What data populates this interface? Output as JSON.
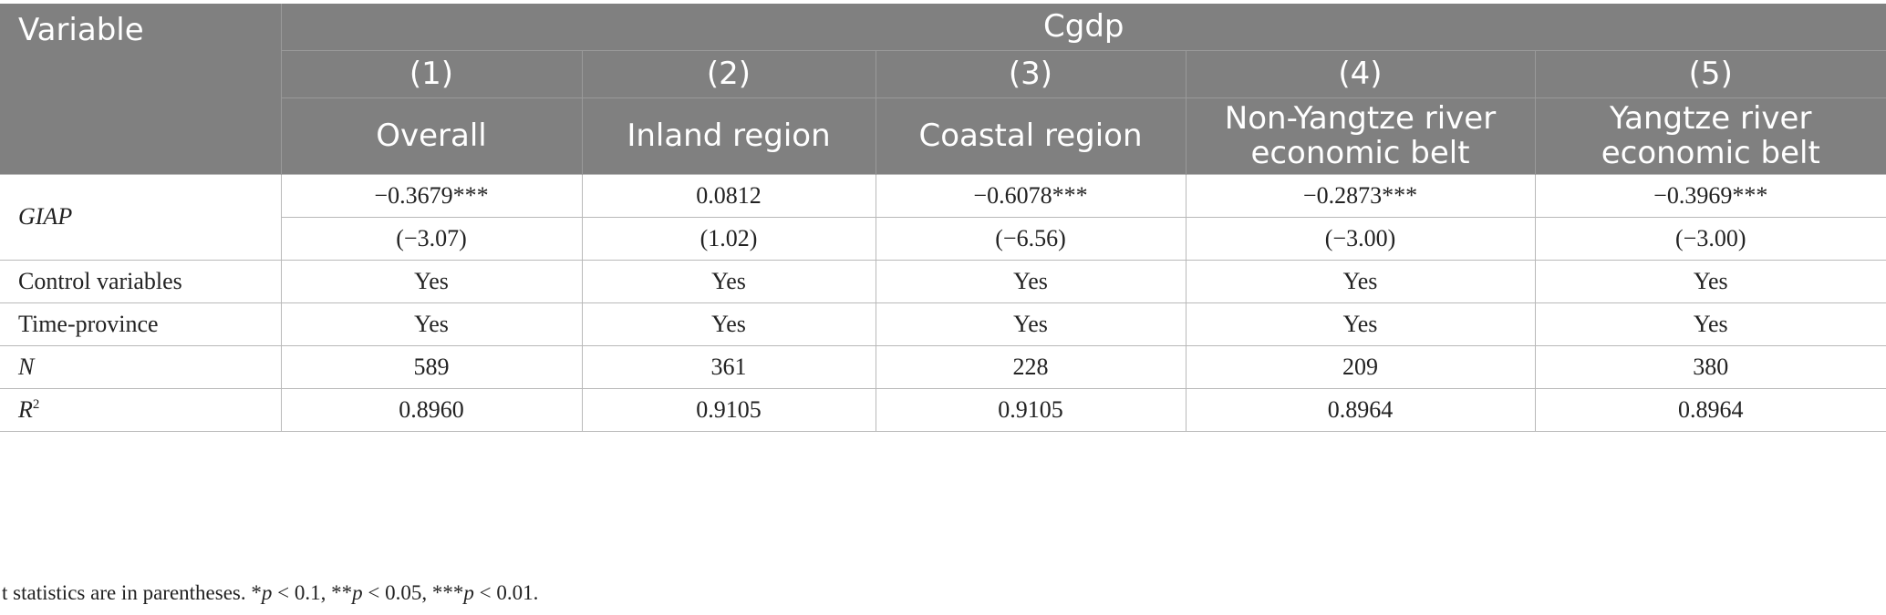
{
  "header": {
    "variable_label": "Variable",
    "group_label": "Cgdp",
    "models": [
      {
        "num": "(1)",
        "label": "Overall"
      },
      {
        "num": "(2)",
        "label": "Inland region"
      },
      {
        "num": "(3)",
        "label": "Coastal region"
      },
      {
        "num": "(4)",
        "label": "Non-Yangtze river economic belt"
      },
      {
        "num": "(5)",
        "label": "Yangtze river economic belt"
      }
    ]
  },
  "rows": [
    {
      "label": "GIAP",
      "coef": [
        "−0.3679***",
        "0.0812",
        "−0.6078***",
        "−0.2873***",
        "−0.3969***"
      ],
      "tstat": [
        "(−3.07)",
        "(1.02)",
        "(−6.56)",
        "(−3.00)",
        "(−3.00)"
      ]
    },
    {
      "label": "Control variables",
      "values": [
        "Yes",
        "Yes",
        "Yes",
        "Yes",
        "Yes"
      ]
    },
    {
      "label": "Time-province",
      "values": [
        "Yes",
        "Yes",
        "Yes",
        "Yes",
        "Yes"
      ]
    },
    {
      "label": "N",
      "values": [
        "589",
        "361",
        "228",
        "209",
        "380"
      ]
    },
    {
      "label": "R",
      "label_sup": "2",
      "values": [
        "0.8960",
        "0.9105",
        "0.9105",
        "0.8964",
        "0.8964"
      ]
    }
  ],
  "note": {
    "prefix": "t statistics are in parentheses. *",
    "p1": "p",
    "t1": " < 0.1, **",
    "p2": "p",
    "t2": " < 0.05, ***",
    "p3": "p",
    "t3": " < 0.01."
  }
}
